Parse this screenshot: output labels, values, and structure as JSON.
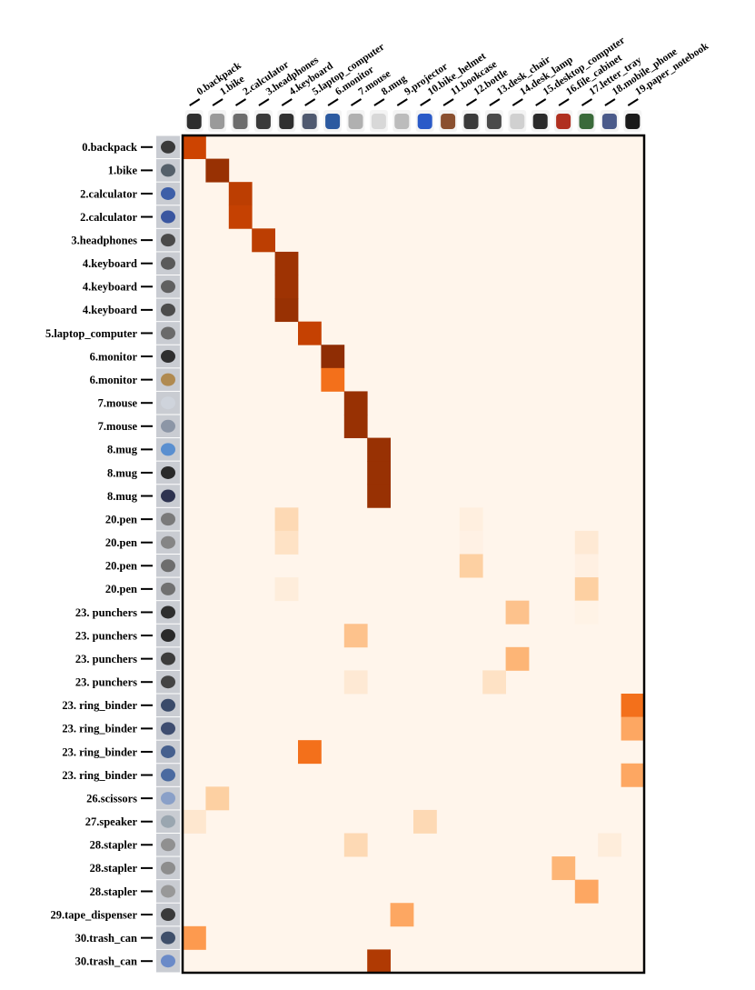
{
  "chart_data": {
    "type": "heatmap",
    "title": "",
    "xlabel": "",
    "ylabel": "",
    "columns": [
      "0.backpack",
      "1.bike",
      "2.calculator",
      "3.headphones",
      "4.keyboard",
      "5.laptop_computer",
      "6.monitor",
      "7.mouse",
      "8.mug",
      "9.projector",
      "10.bike_helmet",
      "11.bookcase",
      "12.bottle",
      "13.desk_chair",
      "14.desk_lamp",
      "15.desktop_computer",
      "16.file_cabinet",
      "17.letter_tray",
      "18.mobile_phone",
      "19.paper_notebook"
    ],
    "rows": [
      "0.backpack",
      "1.bike",
      "2.calculator",
      "2.calculator",
      "3.headphones",
      "4.keyboard",
      "4.keyboard",
      "4.keyboard",
      "5.laptop_computer",
      "6.monitor",
      "6.monitor",
      "7.mouse",
      "7.mouse",
      "8.mug",
      "8.mug",
      "8.mug",
      "20.pen",
      "20.pen",
      "20.pen",
      "20.pen",
      "23. punchers",
      "23. punchers",
      "23. punchers",
      "23. punchers",
      "23. ring_binder",
      "23. ring_binder",
      "23. ring_binder",
      "23. ring_binder",
      "26.scissors",
      "27.speaker",
      "28.stapler",
      "28.stapler",
      "28.stapler",
      "29.tape_dispenser",
      "30.trash_can",
      "30.trash_can"
    ],
    "value_range": [
      0,
      1
    ],
    "colormap": {
      "low": "#fff5eb",
      "high": "#7f2704"
    },
    "cells": [
      [
        0,
        0,
        0.78
      ],
      [
        1,
        1,
        0.92
      ],
      [
        2,
        2,
        0.82
      ],
      [
        3,
        2,
        0.8
      ],
      [
        4,
        3,
        0.82
      ],
      [
        5,
        4,
        0.9
      ],
      [
        6,
        4,
        0.9
      ],
      [
        7,
        4,
        0.92
      ],
      [
        8,
        5,
        0.8
      ],
      [
        9,
        6,
        0.95
      ],
      [
        10,
        6,
        0.6
      ],
      [
        11,
        7,
        0.92
      ],
      [
        12,
        7,
        0.92
      ],
      [
        13,
        8,
        0.92
      ],
      [
        14,
        8,
        0.92
      ],
      [
        15,
        8,
        0.92
      ],
      [
        16,
        4,
        0.2
      ],
      [
        16,
        12,
        0.05
      ],
      [
        17,
        4,
        0.15
      ],
      [
        17,
        12,
        0.03
      ],
      [
        17,
        17,
        0.1
      ],
      [
        18,
        12,
        0.25
      ],
      [
        18,
        17,
        0.04
      ],
      [
        19,
        4,
        0.07
      ],
      [
        19,
        17,
        0.25
      ],
      [
        20,
        14,
        0.3
      ],
      [
        20,
        17,
        0.02
      ],
      [
        21,
        7,
        0.3
      ],
      [
        22,
        14,
        0.35
      ],
      [
        23,
        7,
        0.1
      ],
      [
        23,
        13,
        0.15
      ],
      [
        24,
        19,
        0.6
      ],
      [
        25,
        19,
        0.4
      ],
      [
        26,
        5,
        0.6
      ],
      [
        27,
        19,
        0.4
      ],
      [
        28,
        1,
        0.25
      ],
      [
        29,
        0,
        0.12
      ],
      [
        29,
        10,
        0.2
      ],
      [
        30,
        7,
        0.2
      ],
      [
        30,
        18,
        0.07
      ],
      [
        31,
        16,
        0.35
      ],
      [
        32,
        17,
        0.4
      ],
      [
        33,
        9,
        0.4
      ],
      [
        34,
        0,
        0.45
      ],
      [
        35,
        8,
        0.85
      ]
    ],
    "grid": false,
    "legend": "none"
  }
}
